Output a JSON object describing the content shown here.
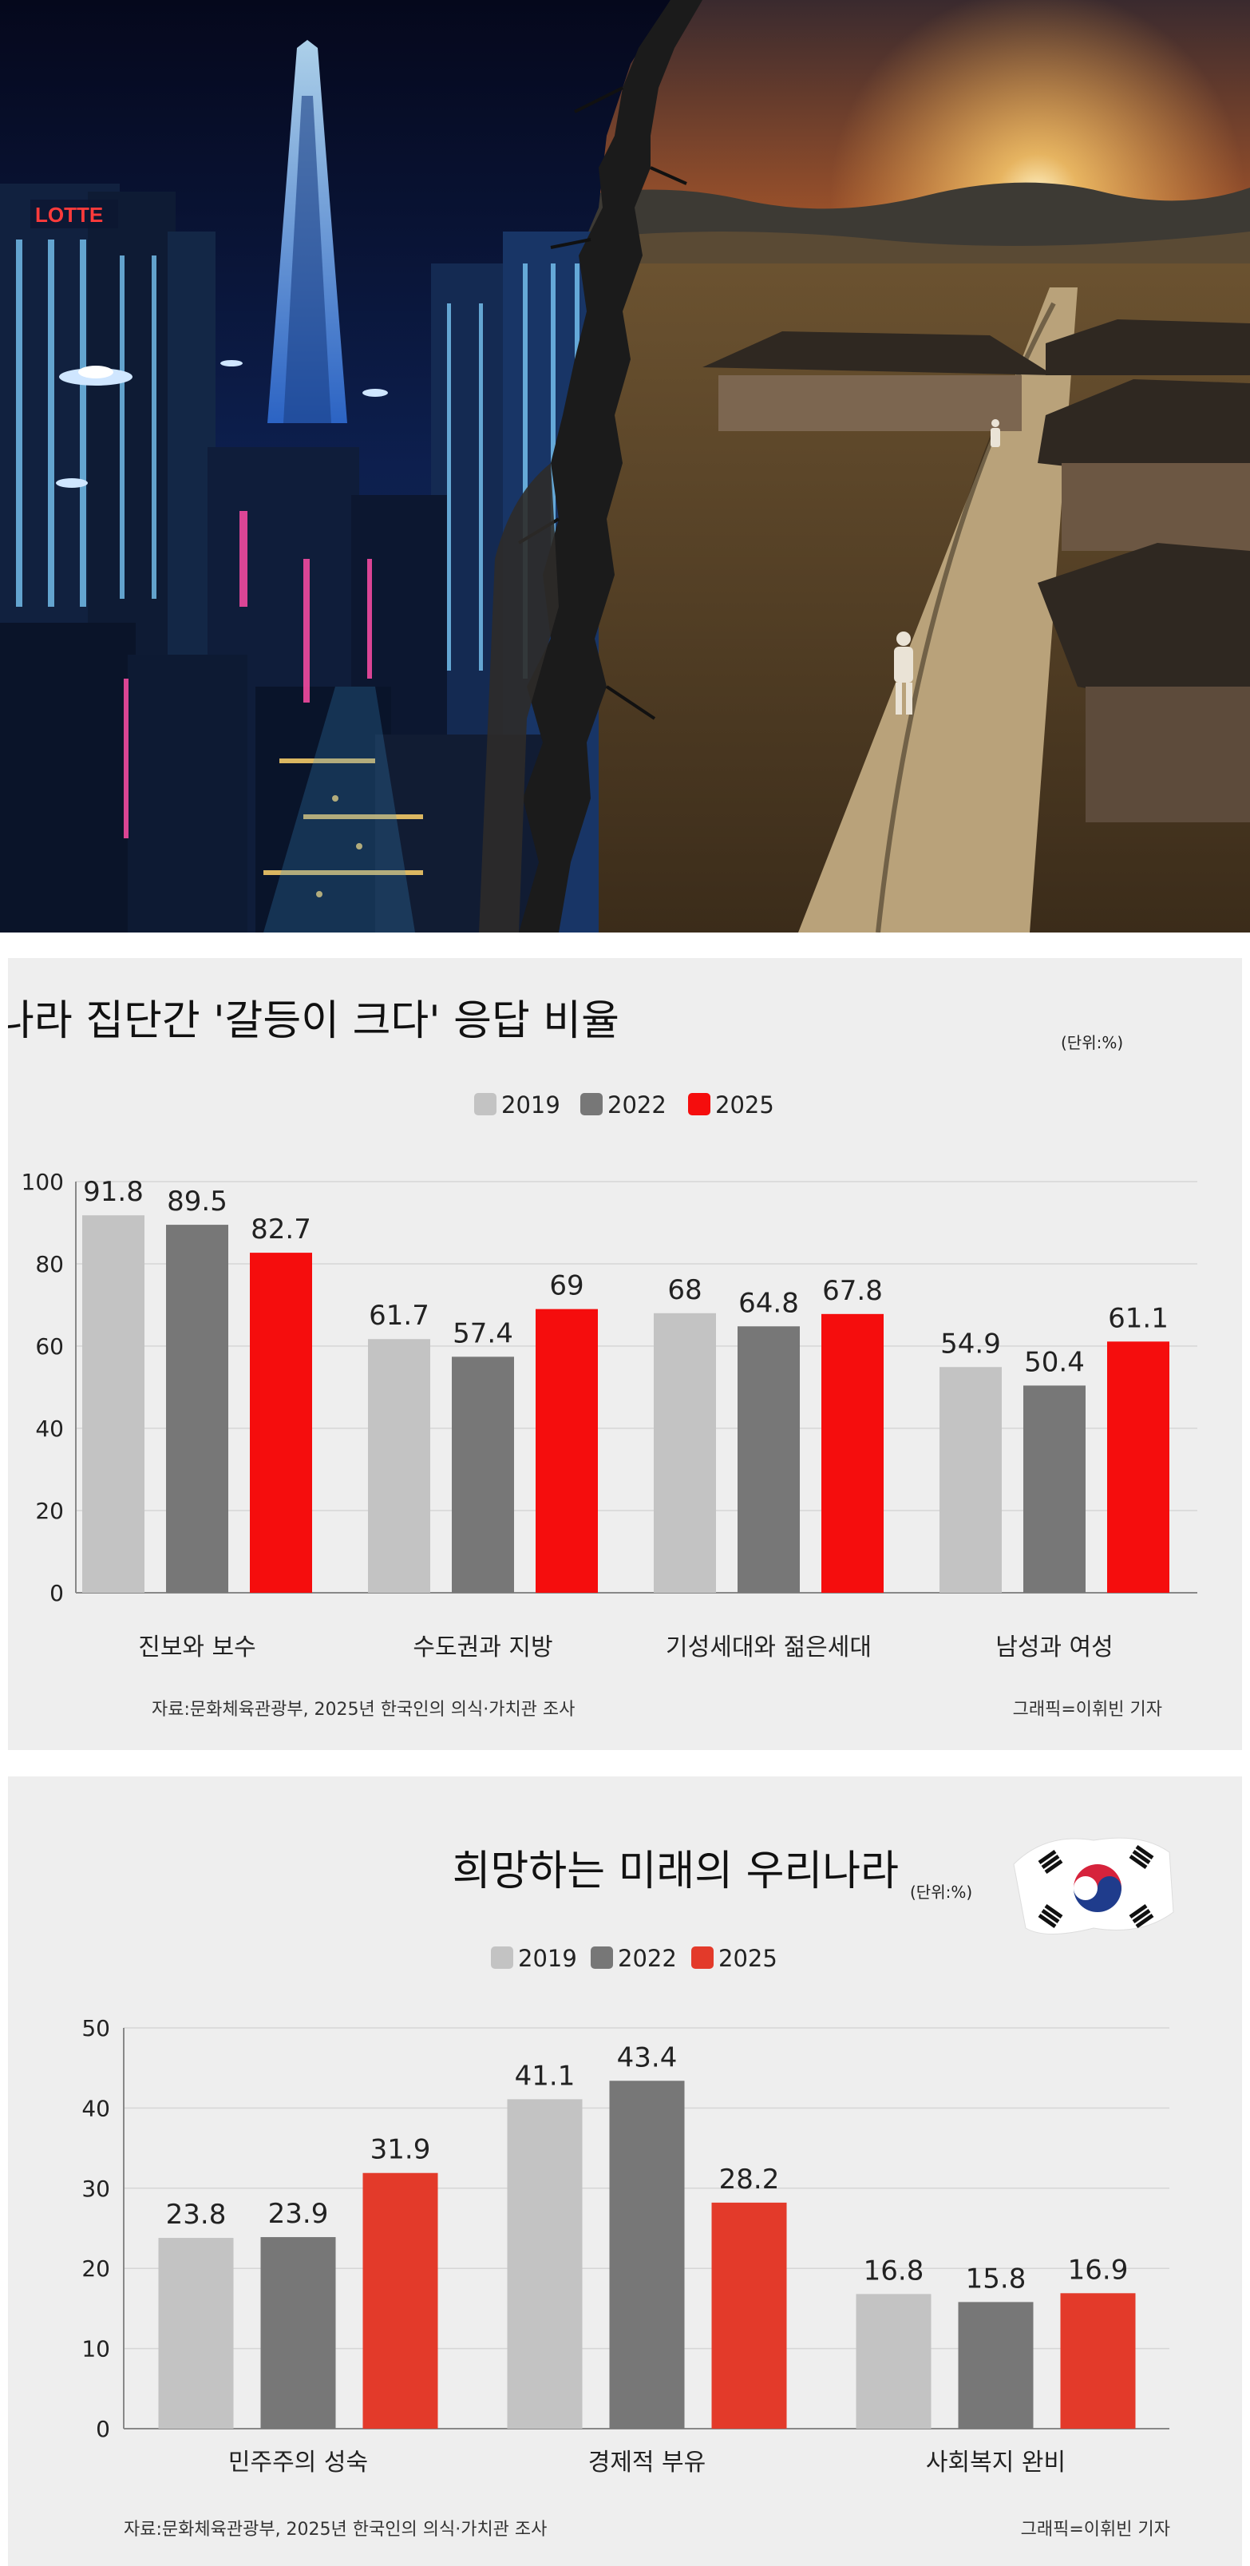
{
  "colors": {
    "c2019": "#c3c3c3",
    "c2022": "#777777",
    "c2025_chart1": "#f50d0d",
    "c2025_chart2": "#e33a2a",
    "panel_bg": "#eeeeee"
  },
  "banner": {
    "sign_text": "LOTTE"
  },
  "chart_data": [
    {
      "type": "bar",
      "title": "우리나라 집단간 '갈등이 크다' 응답 비율",
      "unit": "(단위:%)",
      "categories": [
        "진보와 보수",
        "수도권과 지방",
        "기성세대와 젊은세대",
        "남성과 여성"
      ],
      "series": [
        {
          "name": "2019",
          "values": [
            91.8,
            61.7,
            68,
            54.9
          ]
        },
        {
          "name": "2022",
          "values": [
            89.5,
            57.4,
            64.8,
            50.4
          ]
        },
        {
          "name": "2025",
          "values": [
            82.7,
            69,
            67.8,
            61.1
          ]
        }
      ],
      "value_labels": [
        [
          "91.8",
          "61.7",
          "68",
          "54.9"
        ],
        [
          "89.5",
          "57.4",
          "64.8",
          "50.4"
        ],
        [
          "82.7",
          "69",
          "67.8",
          "61.1"
        ]
      ],
      "yticks": [
        "0",
        "20",
        "40",
        "60",
        "80",
        "100"
      ],
      "ylim": [
        0,
        100
      ],
      "grid": true,
      "legend": "top-center",
      "source": "자료:문화체육관광부, 2025년 한국인의 의식·가치관 조사",
      "credit": "그래픽=이휘빈 기자"
    },
    {
      "type": "bar",
      "title": "희망하는 미래의 우리나라",
      "unit": "(단위:%)",
      "categories": [
        "민주주의 성숙",
        "경제적 부유",
        "사회복지 완비"
      ],
      "series": [
        {
          "name": "2019",
          "values": [
            23.8,
            41.1,
            16.8
          ]
        },
        {
          "name": "2022",
          "values": [
            23.9,
            43.4,
            15.8
          ]
        },
        {
          "name": "2025",
          "values": [
            31.9,
            28.2,
            16.9
          ]
        }
      ],
      "value_labels": [
        [
          "23.8",
          "41.1",
          "16.8"
        ],
        [
          "23.9",
          "43.4",
          "15.8"
        ],
        [
          "31.9",
          "28.2",
          "16.9"
        ]
      ],
      "yticks": [
        "0",
        "10",
        "20",
        "30",
        "40",
        "50"
      ],
      "ylim": [
        0,
        50
      ],
      "grid": true,
      "legend": "top-center",
      "source": "자료:문화체육관광부, 2025년 한국인의 의식·가치관 조사",
      "credit": "그래픽=이휘빈 기자"
    }
  ]
}
